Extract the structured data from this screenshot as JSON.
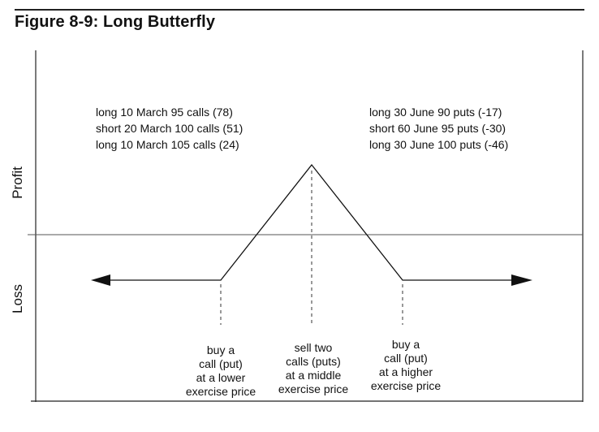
{
  "figure": {
    "title": "Figure 8-9: Long Butterfly"
  },
  "axis": {
    "profit_label": "Profit",
    "loss_label": "Loss"
  },
  "positions": {
    "calls": [
      "long 10 March 95 calls (78)",
      "short 20 March 100 calls (51)",
      "long 10 March 105 calls (24)"
    ],
    "puts": [
      "long 30 June 90 puts (-17)",
      "short 60 June 95 puts (-30)",
      "long 30 June 100 puts (-46)"
    ]
  },
  "annotations": {
    "lower": [
      "buy a",
      "call (put)",
      "at a lower",
      "exercise price"
    ],
    "middle": [
      "sell two",
      "calls (puts)",
      "at a middle",
      "exercise price"
    ],
    "higher": [
      "buy a",
      "call (put)",
      "at a higher",
      "exercise price"
    ]
  }
}
